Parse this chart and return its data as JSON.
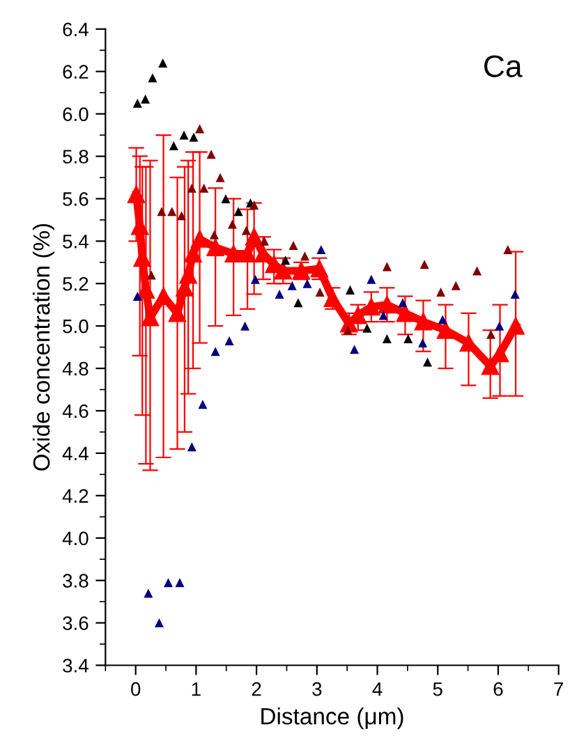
{
  "chart_data": {
    "type": "scatter",
    "xlabel": "Distance (μm)",
    "ylabel": "Oxide concentration (%)",
    "annotations": [
      "Ca"
    ],
    "xlim": [
      -0.5,
      7
    ],
    "ylim": [
      3.4,
      6.4
    ],
    "xticks": [
      0,
      1,
      2,
      3,
      4,
      5,
      6,
      7
    ],
    "yticks": [
      {
        "value": 3.4,
        "label": "3.4"
      },
      {
        "value": 3.6,
        "label": "3.6"
      },
      {
        "value": 3.8,
        "label": "3.8"
      },
      {
        "value": 4.0,
        "label": "4.0"
      },
      {
        "value": 4.2,
        "label": "4.2"
      },
      {
        "value": 4.4,
        "label": "4.4"
      },
      {
        "value": 4.6,
        "label": "4.6"
      },
      {
        "value": 4.8,
        "label": "4.8"
      },
      {
        "value": 5.0,
        "label": "5.0"
      },
      {
        "value": 5.2,
        "label": "5.2"
      },
      {
        "value": 5.4,
        "label": "5.4"
      },
      {
        "value": 5.6,
        "label": "5.6"
      },
      {
        "value": 5.8,
        "label": "5.8"
      },
      {
        "value": 6.0,
        "label": "6.0"
      },
      {
        "value": 6.2,
        "label": "6.2"
      },
      {
        "value": 6.4,
        "label": "6.4"
      }
    ],
    "grid": false,
    "legend": false,
    "marker": "triangle",
    "series": [
      {
        "color": "#000000",
        "x": [
          0.03,
          0.16,
          0.28,
          0.45,
          0.63,
          0.8,
          0.96,
          1.49,
          1.7,
          1.9,
          2.48,
          2.69,
          3.55,
          3.83,
          4.16,
          4.51,
          4.83
        ],
        "values": [
          6.05,
          6.07,
          6.17,
          6.24,
          5.85,
          5.9,
          5.89,
          5.6,
          5.54,
          5.58,
          5.31,
          5.11,
          5.17,
          4.99,
          4.94,
          4.94,
          4.83
        ]
      },
      {
        "color": "#800000",
        "x": [
          0.26,
          0.43,
          0.6,
          0.76,
          0.93,
          1.06,
          1.13,
          1.25,
          1.3,
          1.4,
          1.6,
          1.83,
          1.96,
          2.13,
          2.61,
          2.8,
          3.05,
          3.51,
          4.16,
          4.78,
          5.05,
          5.3,
          5.65,
          5.88,
          6.16
        ],
        "values": [
          5.24,
          5.54,
          5.54,
          5.52,
          5.65,
          5.93,
          5.65,
          5.81,
          5.43,
          5.7,
          5.48,
          5.45,
          5.57,
          5.4,
          5.38,
          5.33,
          5.16,
          4.98,
          5.28,
          5.29,
          5.16,
          5.19,
          5.26,
          4.96,
          5.36
        ]
      },
      {
        "color": "#000080",
        "x": [
          0.03,
          0.21,
          0.39,
          0.54,
          0.73,
          0.93,
          1.11,
          1.32,
          1.55,
          1.81,
          1.98,
          2.38,
          2.59,
          2.84,
          3.07,
          3.62,
          3.9,
          4.1,
          4.42,
          4.75,
          5.08,
          6.02,
          6.28
        ],
        "values": [
          5.14,
          3.74,
          3.6,
          3.79,
          3.79,
          4.43,
          4.63,
          4.88,
          4.93,
          5.0,
          5.22,
          5.15,
          5.19,
          5.2,
          5.36,
          4.89,
          5.22,
          5.05,
          5.11,
          4.92,
          5.03,
          5.0,
          5.15
        ]
      },
      {
        "type": "line",
        "color": "#ff0000",
        "x": [
          0.01,
          0.07,
          0.11,
          0.17,
          0.24,
          0.46,
          0.69,
          0.81,
          0.87,
          0.95,
          1.06,
          1.32,
          1.62,
          1.85,
          1.96,
          2.11,
          2.29,
          2.44,
          2.74,
          3.04,
          3.26,
          3.53,
          3.68,
          3.9,
          4.16,
          4.46,
          4.76,
          5.13,
          5.51,
          5.87,
          6.03,
          6.29
        ],
        "values": [
          5.62,
          5.47,
          5.32,
          5.17,
          5.04,
          5.14,
          5.06,
          5.18,
          5.24,
          5.34,
          5.41,
          5.37,
          5.34,
          5.34,
          5.42,
          5.34,
          5.29,
          5.26,
          5.26,
          5.27,
          5.13,
          5.01,
          5.05,
          5.09,
          5.1,
          5.06,
          5.02,
          4.98,
          4.92,
          4.81,
          4.87,
          5.0
        ],
        "errors": [
          [
            5.4,
            5.84
          ],
          [
            4.86,
            5.8
          ],
          [
            4.58,
            5.75
          ],
          [
            4.35,
            5.75
          ],
          [
            4.32,
            5.78
          ],
          [
            4.38,
            5.9
          ],
          [
            4.42,
            5.7
          ],
          [
            4.5,
            5.75
          ],
          [
            4.68,
            5.78
          ],
          [
            4.8,
            5.82
          ],
          [
            4.92,
            5.82
          ],
          [
            5.0,
            5.65
          ],
          [
            5.05,
            5.6
          ],
          [
            5.08,
            5.55
          ],
          [
            5.15,
            5.58
          ],
          [
            5.22,
            5.42
          ],
          [
            5.2,
            5.36
          ],
          [
            5.2,
            5.32
          ],
          [
            5.22,
            5.3
          ],
          [
            5.22,
            5.32
          ],
          [
            5.08,
            5.18
          ],
          [
            4.96,
            5.06
          ],
          [
            4.98,
            5.1
          ],
          [
            5.02,
            5.16
          ],
          [
            5.02,
            5.18
          ],
          [
            4.96,
            5.14
          ],
          [
            4.88,
            5.12
          ],
          [
            4.8,
            5.1
          ],
          [
            4.72,
            5.06
          ],
          [
            4.66,
            4.98
          ],
          [
            4.67,
            5.1
          ],
          [
            4.67,
            5.35
          ]
        ]
      }
    ]
  }
}
